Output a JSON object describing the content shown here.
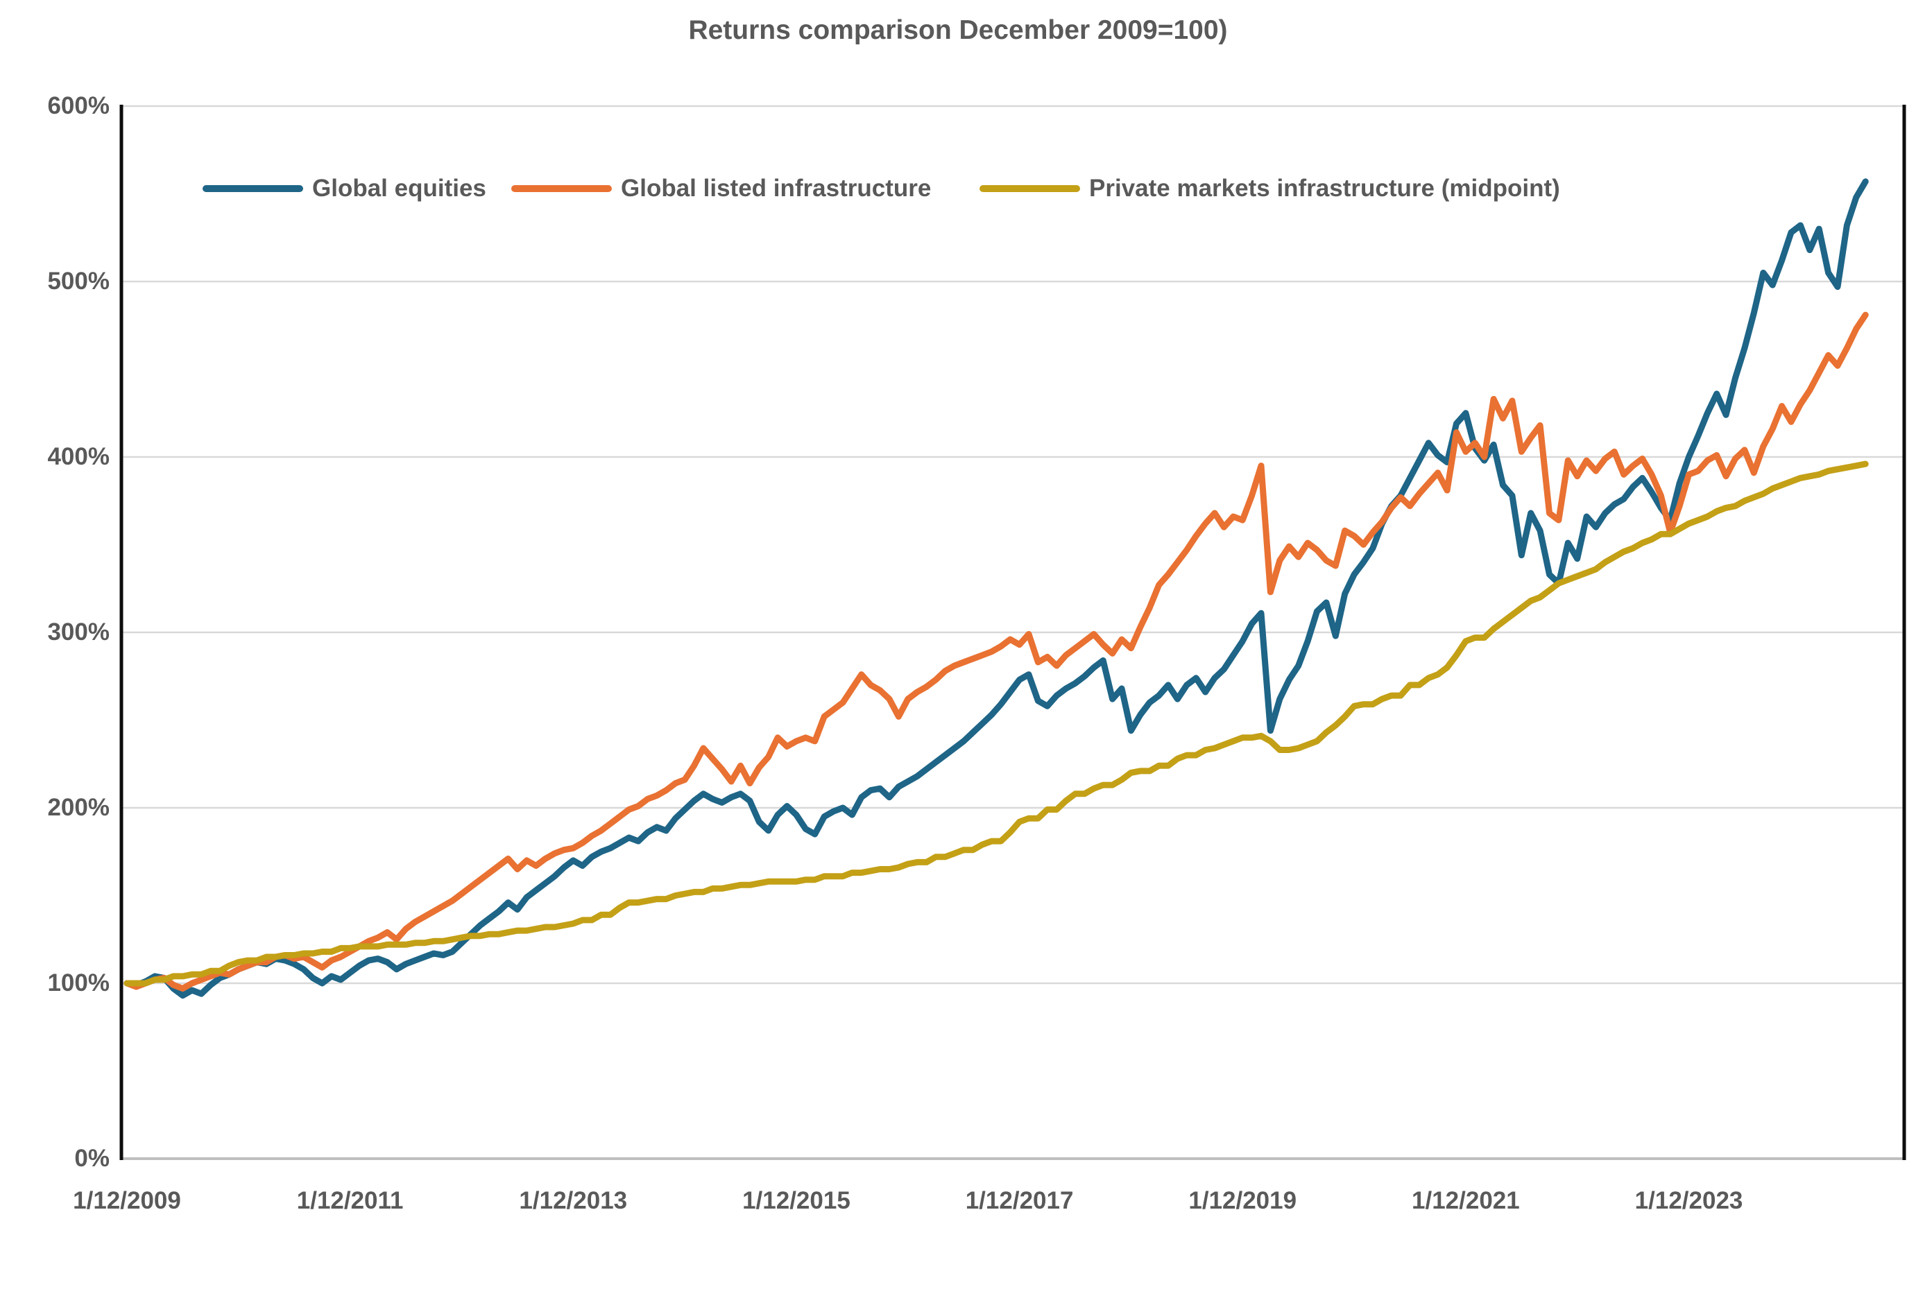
{
  "title": "Returns comparison December 2009=100)",
  "colors": {
    "global_equities": "#1E6587",
    "global_listed_infrastructure": "#E97132",
    "private_markets_infrastructure": "#C3A016",
    "gridline": "#D9D9D9",
    "axis_line": "#0D0D0D",
    "baseline": "#BFBFBF",
    "text": "#595959",
    "background": "#FFFFFF"
  },
  "chart_data": {
    "type": "line",
    "title": "Returns comparison December 2009=100)",
    "xlabel": "",
    "ylabel": "",
    "x_start": "1/12/2009",
    "x_frequency": "monthly",
    "x_tick_labels": [
      "1/12/2009",
      "1/12/2011",
      "1/12/2013",
      "1/12/2015",
      "1/12/2017",
      "1/12/2019",
      "1/12/2021",
      "1/12/2023"
    ],
    "x_tick_month_index": [
      0,
      24,
      48,
      72,
      96,
      120,
      144,
      168
    ],
    "y_tick_labels": [
      "0%",
      "100%",
      "200%",
      "300%",
      "400%",
      "500%",
      "600%"
    ],
    "ylim": [
      0,
      600
    ],
    "grid": "horizontal",
    "legend_position": "top",
    "series": [
      {
        "name": "Global equities",
        "color": "#1E6587",
        "values": [
          100,
          99,
          101,
          104,
          103,
          97,
          93,
          96,
          94,
          99,
          103,
          105,
          108,
          110,
          112,
          111,
          114,
          113,
          111,
          108,
          103,
          100,
          104,
          102,
          106,
          110,
          113,
          114,
          112,
          108,
          111,
          113,
          115,
          117,
          116,
          118,
          123,
          128,
          133,
          137,
          141,
          146,
          142,
          149,
          153,
          157,
          161,
          166,
          170,
          167,
          172,
          175,
          177,
          180,
          183,
          181,
          186,
          189,
          187,
          194,
          199,
          204,
          208,
          205,
          203,
          206,
          208,
          204,
          192,
          187,
          196,
          201,
          196,
          188,
          185,
          195,
          198,
          200,
          196,
          206,
          210,
          211,
          206,
          212,
          215,
          218,
          222,
          226,
          230,
          234,
          238,
          243,
          248,
          253,
          259,
          266,
          273,
          276,
          261,
          258,
          264,
          268,
          271,
          275,
          280,
          284,
          262,
          268,
          244,
          253,
          260,
          264,
          270,
          262,
          270,
          274,
          266,
          274,
          279,
          287,
          295,
          305,
          311,
          244,
          262,
          273,
          281,
          295,
          312,
          317,
          298,
          322,
          333,
          340,
          348,
          362,
          372,
          378,
          388,
          398,
          408,
          401,
          397,
          419,
          425,
          405,
          398,
          407,
          384,
          378,
          344,
          368,
          358,
          333,
          328,
          351,
          342,
          366,
          360,
          368,
          373,
          376,
          383,
          388,
          380,
          371,
          364,
          385,
          400,
          412,
          425,
          436,
          424,
          445,
          462,
          482,
          505,
          498,
          512,
          528,
          532,
          518,
          530,
          505,
          497,
          532,
          548,
          557
        ]
      },
      {
        "name": "Global listed infrastructure",
        "color": "#E97132",
        "values": [
          100,
          98,
          100,
          102,
          103,
          99,
          97,
          100,
          102,
          104,
          106,
          105,
          108,
          110,
          112,
          112,
          115,
          116,
          114,
          115,
          112,
          109,
          113,
          115,
          118,
          121,
          124,
          126,
          129,
          125,
          131,
          135,
          138,
          141,
          144,
          147,
          151,
          155,
          159,
          163,
          167,
          171,
          165,
          170,
          167,
          171,
          174,
          176,
          177,
          180,
          184,
          187,
          191,
          195,
          199,
          201,
          205,
          207,
          210,
          214,
          216,
          224,
          234,
          228,
          222,
          215,
          224,
          214,
          223,
          229,
          240,
          235,
          238,
          240,
          238,
          252,
          256,
          260,
          268,
          276,
          270,
          267,
          262,
          252,
          262,
          266,
          269,
          273,
          278,
          281,
          283,
          285,
          287,
          289,
          292,
          296,
          293,
          299,
          283,
          286,
          281,
          287,
          291,
          295,
          299,
          293,
          288,
          296,
          291,
          303,
          314,
          327,
          333,
          340,
          347,
          355,
          362,
          368,
          360,
          366,
          364,
          378,
          395,
          323,
          341,
          349,
          343,
          351,
          347,
          341,
          338,
          358,
          355,
          350,
          357,
          363,
          371,
          377,
          372,
          379,
          385,
          391,
          381,
          414,
          403,
          408,
          400,
          433,
          422,
          432,
          403,
          411,
          418,
          368,
          364,
          398,
          389,
          398,
          392,
          399,
          403,
          390,
          395,
          399,
          390,
          378,
          357,
          372,
          390,
          392,
          398,
          401,
          389,
          399,
          404,
          391,
          406,
          416,
          429,
          420,
          430,
          438,
          448,
          458,
          452,
          462,
          473,
          481
        ]
      },
      {
        "name": "Private markets infrastructure (midpoint)",
        "color": "#C3A016",
        "values": [
          100,
          100,
          100,
          102,
          102,
          104,
          104,
          105,
          105,
          107,
          107,
          110,
          112,
          113,
          113,
          115,
          115,
          116,
          116,
          117,
          117,
          118,
          118,
          120,
          120,
          121,
          121,
          121,
          122,
          122,
          122,
          123,
          123,
          124,
          124,
          125,
          126,
          127,
          127,
          128,
          128,
          129,
          130,
          130,
          131,
          132,
          132,
          133,
          134,
          136,
          136,
          139,
          139,
          143,
          146,
          146,
          147,
          148,
          148,
          150,
          151,
          152,
          152,
          154,
          154,
          155,
          156,
          156,
          157,
          158,
          158,
          158,
          158,
          159,
          159,
          161,
          161,
          161,
          163,
          163,
          164,
          165,
          165,
          166,
          168,
          169,
          169,
          172,
          172,
          174,
          176,
          176,
          179,
          181,
          181,
          186,
          192,
          194,
          194,
          199,
          199,
          204,
          208,
          208,
          211,
          213,
          213,
          216,
          220,
          221,
          221,
          224,
          224,
          228,
          230,
          230,
          233,
          234,
          236,
          238,
          240,
          240,
          241,
          238,
          233,
          233,
          234,
          236,
          238,
          243,
          247,
          252,
          258,
          259,
          259,
          262,
          264,
          264,
          270,
          270,
          274,
          276,
          280,
          287,
          295,
          297,
          297,
          302,
          306,
          310,
          314,
          318,
          320,
          324,
          328,
          330,
          332,
          334,
          336,
          340,
          343,
          346,
          348,
          351,
          353,
          356,
          356,
          359,
          362,
          364,
          366,
          369,
          371,
          372,
          375,
          377,
          379,
          382,
          384,
          386,
          388,
          389,
          390,
          392,
          393,
          394,
          395,
          396
        ]
      }
    ]
  }
}
